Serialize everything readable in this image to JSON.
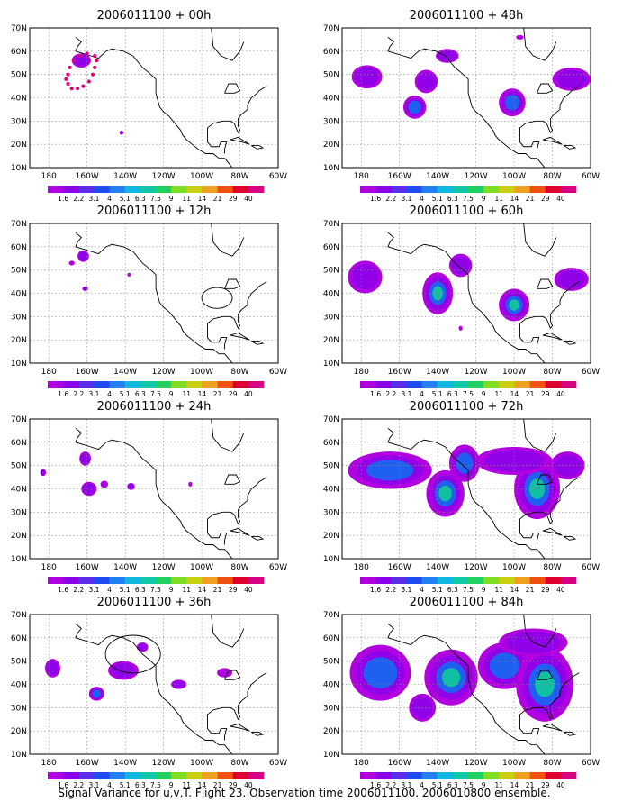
{
  "figure": {
    "caption": "Signal Variance for u,v,T. Flight 23. Observation time 2006011100. 2006010800 ensemble."
  },
  "colorbar": {
    "labels": [
      "1.6",
      "2.2",
      "3.1",
      "4",
      "5.1",
      "6.3",
      "7.5",
      "9",
      "11",
      "14",
      "21",
      "29",
      "40"
    ],
    "colors": [
      "#b000e0",
      "#8a00e8",
      "#5a2ee8",
      "#1e4cf0",
      "#2080f0",
      "#10b8e0",
      "#10c8a8",
      "#20d060",
      "#80dc20",
      "#c8d010",
      "#f0a020",
      "#f05010",
      "#e00030",
      "#d80080"
    ]
  },
  "axes": {
    "x_ticks": [
      "180",
      "160W",
      "140W",
      "120W",
      "100W",
      "80W",
      "60W"
    ],
    "y_ticks": [
      "10N",
      "20N",
      "30N",
      "40N",
      "50N",
      "60N",
      "70N"
    ]
  },
  "panels": [
    {
      "title": "2006011100 + 00h",
      "blobs": [
        {
          "lon": -163,
          "lat": 56,
          "level": 1,
          "rx": 5,
          "ry": 3
        },
        {
          "lon": -142,
          "lat": 25,
          "level": 1,
          "rx": 1,
          "ry": 0.8
        }
      ],
      "track": [
        [
          -171,
          48
        ],
        [
          -170,
          46
        ],
        [
          -168,
          44
        ],
        [
          -165,
          44
        ],
        [
          -162,
          45
        ],
        [
          -159,
          47
        ],
        [
          -157,
          50
        ],
        [
          -156,
          53
        ],
        [
          -155,
          56
        ],
        [
          -156,
          58
        ],
        [
          -160,
          59
        ],
        [
          -164,
          58
        ],
        [
          -167,
          56
        ],
        [
          -169,
          53
        ],
        [
          -170,
          50
        ]
      ]
    },
    {
      "title": "2006011100 + 12h",
      "blobs": [
        {
          "lon": -162,
          "lat": 56,
          "level": 1,
          "rx": 3,
          "ry": 2.5
        },
        {
          "lon": -168,
          "lat": 53,
          "level": 0,
          "rx": 1.5,
          "ry": 1
        },
        {
          "lon": -161,
          "lat": 42,
          "level": 1,
          "rx": 1.5,
          "ry": 1
        },
        {
          "lon": -138,
          "lat": 48,
          "level": 0,
          "rx": 0.6,
          "ry": 0.6
        }
      ],
      "circle": {
        "lon": -92,
        "lat": 38,
        "r": 5
      }
    },
    {
      "title": "2006011100 + 24h",
      "blobs": [
        {
          "lon": -161,
          "lat": 53,
          "level": 1,
          "rx": 3,
          "ry": 3
        },
        {
          "lon": -159,
          "lat": 40,
          "level": 1,
          "rx": 4,
          "ry": 3
        },
        {
          "lon": -151,
          "lat": 42,
          "level": 0,
          "rx": 2,
          "ry": 1.5
        },
        {
          "lon": -137,
          "lat": 41,
          "level": 1,
          "rx": 2,
          "ry": 1.5
        },
        {
          "lon": -183,
          "lat": 47,
          "level": 1,
          "rx": 1.5,
          "ry": 1.5
        },
        {
          "lon": -106,
          "lat": 42,
          "level": 0,
          "rx": 1,
          "ry": 1
        }
      ]
    },
    {
      "title": "2006011100 + 36h",
      "blobs": [
        {
          "lon": -178,
          "lat": 47,
          "level": 1,
          "rx": 4,
          "ry": 4
        },
        {
          "lon": -155,
          "lat": 36,
          "level": 2,
          "rx": 4,
          "ry": 3
        },
        {
          "lon": -141,
          "lat": 46,
          "level": 1,
          "rx": 8,
          "ry": 4
        },
        {
          "lon": -131,
          "lat": 56,
          "level": 1,
          "rx": 3,
          "ry": 2
        },
        {
          "lon": -112,
          "lat": 40,
          "level": 1,
          "rx": 4,
          "ry": 2
        },
        {
          "lon": -88,
          "lat": 45,
          "level": 0,
          "rx": 4,
          "ry": 2
        }
      ],
      "circle": {
        "lon": -136,
        "lat": 53,
        "r": 9
      }
    },
    {
      "title": "2006011100 + 48h",
      "blobs": [
        {
          "lon": -177,
          "lat": 49,
          "level": 1,
          "rx": 8,
          "ry": 5
        },
        {
          "lon": -152,
          "lat": 36,
          "level": 2,
          "rx": 6,
          "ry": 5
        },
        {
          "lon": -146,
          "lat": 47,
          "level": 1,
          "rx": 6,
          "ry": 5
        },
        {
          "lon": -135,
          "lat": 58,
          "level": 1,
          "rx": 6,
          "ry": 3
        },
        {
          "lon": -101,
          "lat": 38,
          "level": 2,
          "rx": 7,
          "ry": 6
        },
        {
          "lon": -70,
          "lat": 48,
          "level": 1,
          "rx": 10,
          "ry": 5
        },
        {
          "lon": -97,
          "lat": 66,
          "level": 0,
          "rx": 2,
          "ry": 1
        }
      ]
    },
    {
      "title": "2006011100 + 60h",
      "blobs": [
        {
          "lon": -178,
          "lat": 47,
          "level": 1,
          "rx": 9,
          "ry": 7
        },
        {
          "lon": -140,
          "lat": 40,
          "level": 3,
          "rx": 8,
          "ry": 9
        },
        {
          "lon": -128,
          "lat": 52,
          "level": 1,
          "rx": 6,
          "ry": 5
        },
        {
          "lon": -100,
          "lat": 35,
          "level": 3,
          "rx": 8,
          "ry": 7
        },
        {
          "lon": -70,
          "lat": 46,
          "level": 1,
          "rx": 9,
          "ry": 5
        },
        {
          "lon": -128,
          "lat": 25,
          "level": 0,
          "rx": 1,
          "ry": 1
        }
      ]
    },
    {
      "title": "2006011100 + 72h",
      "blobs": [
        {
          "lon": -165,
          "lat": 48,
          "level": 2,
          "rx": 22,
          "ry": 8
        },
        {
          "lon": -136,
          "lat": 38,
          "level": 3,
          "rx": 10,
          "ry": 10
        },
        {
          "lon": -126,
          "lat": 51,
          "level": 2,
          "rx": 8,
          "ry": 8
        },
        {
          "lon": -88,
          "lat": 40,
          "level": 4,
          "rx": 12,
          "ry": 13
        },
        {
          "lon": -100,
          "lat": 52,
          "level": 1,
          "rx": 20,
          "ry": 6
        },
        {
          "lon": -72,
          "lat": 50,
          "level": 1,
          "rx": 9,
          "ry": 6
        }
      ]
    },
    {
      "title": "2006011100 + 84h",
      "blobs": [
        {
          "lon": -170,
          "lat": 45,
          "level": 2,
          "rx": 16,
          "ry": 12
        },
        {
          "lon": -133,
          "lat": 43,
          "level": 3,
          "rx": 14,
          "ry": 12
        },
        {
          "lon": -105,
          "lat": 48,
          "level": 2,
          "rx": 14,
          "ry": 10
        },
        {
          "lon": -84,
          "lat": 40,
          "level": 5,
          "rx": 15,
          "ry": 16
        },
        {
          "lon": -148,
          "lat": 30,
          "level": 1,
          "rx": 7,
          "ry": 6
        },
        {
          "lon": -90,
          "lat": 58,
          "level": 1,
          "rx": 18,
          "ry": 6
        }
      ]
    }
  ]
}
